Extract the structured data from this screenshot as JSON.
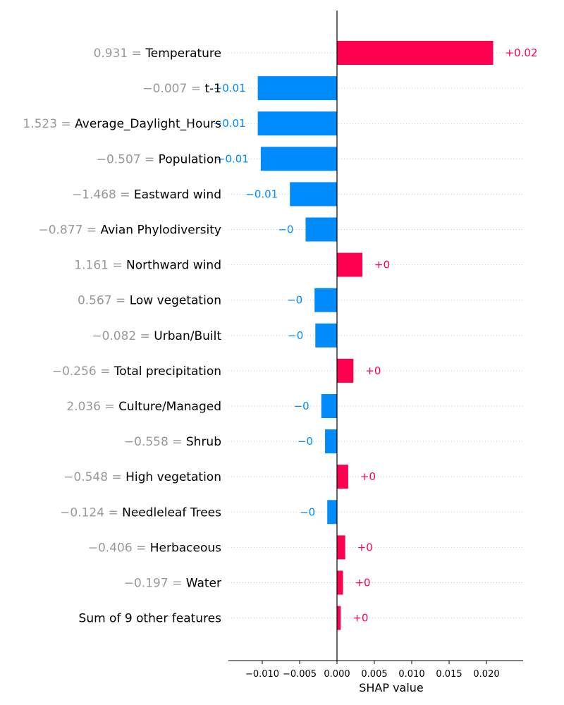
{
  "chart_data": {
    "type": "bar",
    "subtype": "shap-waterfall-bar",
    "xlabel": "SHAP value",
    "xlim": [
      -0.0138,
      0.0243
    ],
    "xticks": [
      "−0.010",
      "−0.005",
      "0.000",
      "0.005",
      "0.010",
      "0.015",
      "0.020"
    ],
    "xtick_values": [
      -0.01,
      -0.005,
      0.0,
      0.005,
      0.01,
      0.015,
      0.02
    ],
    "colors": {
      "positive": "#ff0051",
      "negative": "#008bfb",
      "feature_value": "#999999"
    },
    "grid": "horizontal dotted",
    "features": [
      {
        "value": "0.931",
        "name": "Temperature",
        "shap": 0.0209,
        "label": "+0.02"
      },
      {
        "value": "−0.007",
        "name": "t-1",
        "shap": -0.0106,
        "label": "−0.01"
      },
      {
        "value": "1.523",
        "name": "Average_Daylight_Hours",
        "shap": -0.0106,
        "label": "−0.01"
      },
      {
        "value": "−0.507",
        "name": "Population",
        "shap": -0.0102,
        "label": "−0.01"
      },
      {
        "value": "−1.468",
        "name": "Eastward wind",
        "shap": -0.0063,
        "label": "−0.01"
      },
      {
        "value": "−0.877",
        "name": "Avian Phylodiversity",
        "shap": -0.0042,
        "label": "−0"
      },
      {
        "value": "1.161",
        "name": "Northward wind",
        "shap": 0.0034,
        "label": "+0"
      },
      {
        "value": "0.567",
        "name": "Low vegetation",
        "shap": -0.003,
        "label": "−0"
      },
      {
        "value": "−0.082",
        "name": "Urban/Built",
        "shap": -0.0029,
        "label": "−0"
      },
      {
        "value": "−0.256",
        "name": "Total precipitation",
        "shap": 0.0022,
        "label": "+0"
      },
      {
        "value": "2.036",
        "name": "Culture/Managed",
        "shap": -0.0021,
        "label": "−0"
      },
      {
        "value": "−0.558",
        "name": "Shrub",
        "shap": -0.0016,
        "label": "−0"
      },
      {
        "value": "−0.548",
        "name": "High vegetation",
        "shap": 0.0015,
        "label": "+0"
      },
      {
        "value": "−0.124",
        "name": "Needleleaf Trees",
        "shap": -0.0013,
        "label": "−0"
      },
      {
        "value": "−0.406",
        "name": "Herbaceous",
        "shap": 0.0011,
        "label": "+0"
      },
      {
        "value": "−0.197",
        "name": "Water",
        "shap": 0.0008,
        "label": "+0"
      },
      {
        "value": "",
        "name": "Sum of 9 other features",
        "shap": 0.0005,
        "label": "+0"
      }
    ]
  }
}
